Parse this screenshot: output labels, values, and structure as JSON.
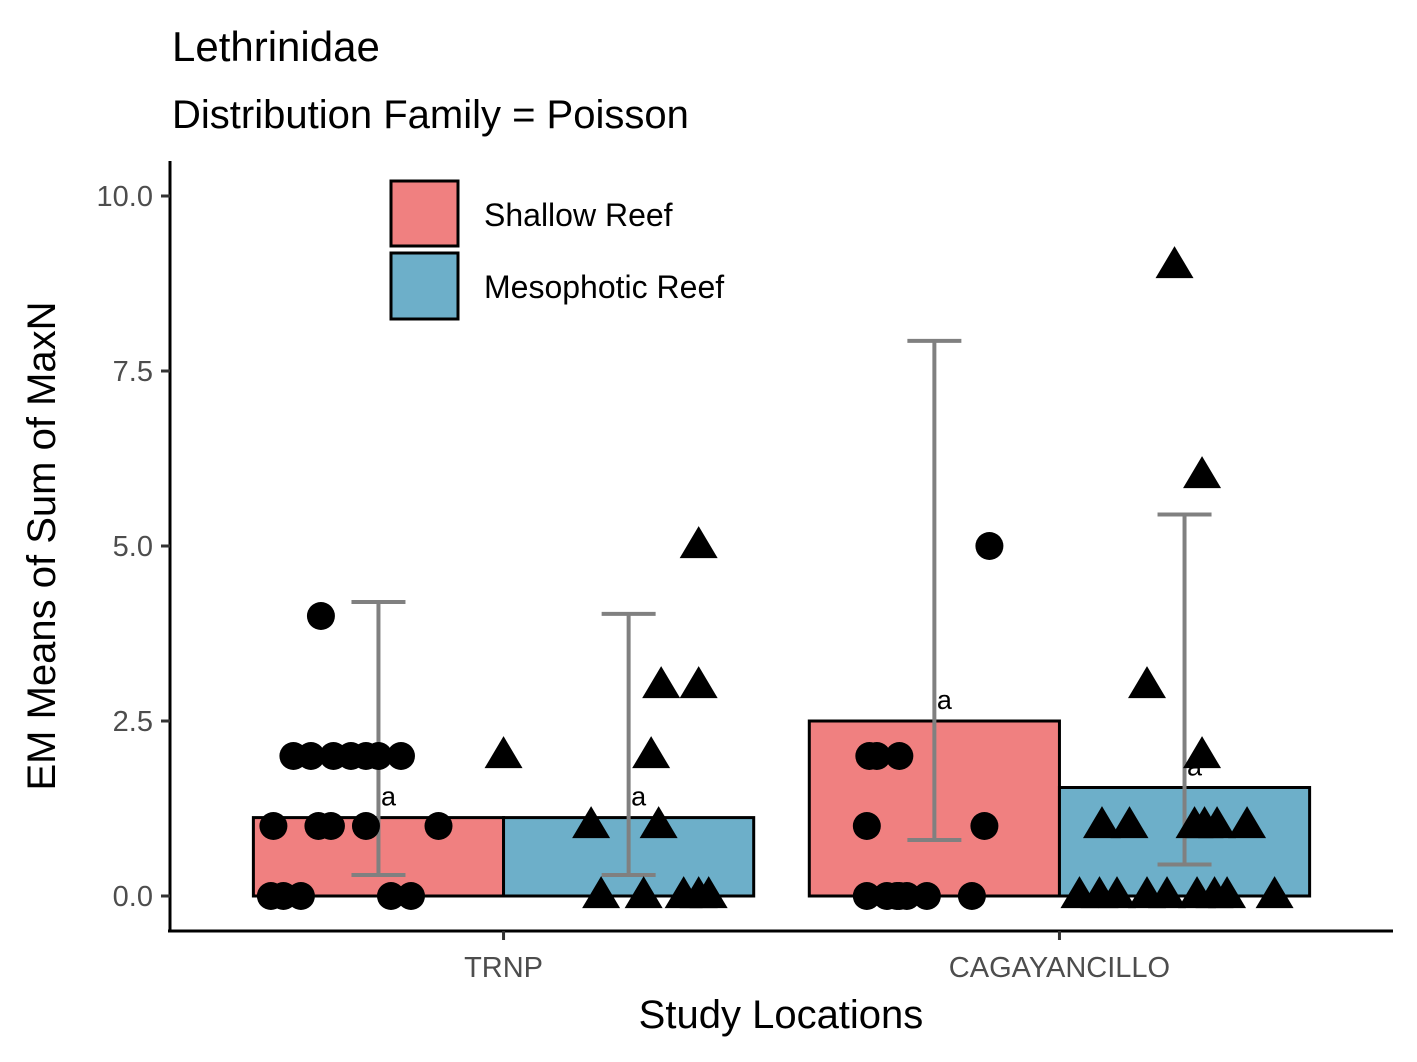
{
  "chart_data": {
    "type": "bar",
    "title": "Lethrinidae",
    "subtitle": "Distribution Family = Poisson",
    "xlabel": "Study Locations",
    "ylabel": "EM Means of Sum of MaxN",
    "ylim": [
      -0.5,
      10.5
    ],
    "yticks": [
      "0.0",
      "2.5",
      "5.0",
      "7.5",
      "10.0"
    ],
    "ytick_values": [
      0,
      2.5,
      5,
      7.5,
      10
    ],
    "categories": [
      "TRNP",
      "CAGAYANCILLO"
    ],
    "grid": false,
    "legend_position": "top-left (inside plot)",
    "colors": {
      "Shallow Reef": "#F08080",
      "Mesophotic Reef": "#6DAFC9",
      "error_bar": "#808080",
      "points": "#000000"
    },
    "series": [
      {
        "name": "Shallow Reef",
        "marker": "circle",
        "values": [
          1.12,
          2.5
        ],
        "ci_lower": [
          0.3,
          0.8
        ],
        "ci_upper": [
          4.2,
          7.93
        ],
        "sig_letters": [
          "a",
          "a"
        ],
        "points": [
          [
            [
              -0.43,
              0
            ],
            [
              -0.38,
              0
            ],
            [
              -0.31,
              0
            ],
            [
              0.05,
              0
            ],
            [
              0.13,
              0
            ],
            [
              -0.42,
              1
            ],
            [
              -0.24,
              1
            ],
            [
              -0.19,
              1
            ],
            [
              -0.05,
              1
            ],
            [
              0.24,
              1
            ],
            [
              -0.34,
              2
            ],
            [
              -0.27,
              2
            ],
            [
              -0.18,
              2
            ],
            [
              -0.11,
              2
            ],
            [
              -0.05,
              2
            ],
            [
              0.0,
              2
            ],
            [
              0.09,
              2
            ],
            [
              -0.23,
              4
            ]
          ],
          [
            [
              -0.27,
              0
            ],
            [
              -0.19,
              0
            ],
            [
              -0.15,
              0
            ],
            [
              -0.11,
              0
            ],
            [
              -0.03,
              0
            ],
            [
              0.15,
              0
            ],
            [
              -0.14,
              0
            ],
            [
              -0.27,
              1
            ],
            [
              0.2,
              1
            ],
            [
              -0.26,
              2
            ],
            [
              -0.23,
              2
            ],
            [
              -0.14,
              2
            ],
            [
              0.22,
              5
            ]
          ]
        ]
      },
      {
        "name": "Mesophotic Reef",
        "marker": "triangle",
        "values": [
          1.12,
          1.55
        ],
        "ci_lower": [
          0.3,
          0.45
        ],
        "ci_upper": [
          4.03,
          5.45
        ],
        "sig_letters": [
          "a",
          "a"
        ],
        "points": [
          [
            [
              -0.11,
              0
            ],
            [
              0.06,
              0
            ],
            [
              0.22,
              0
            ],
            [
              0.28,
              0
            ],
            [
              0.32,
              0
            ],
            [
              -0.15,
              1
            ],
            [
              0.12,
              1
            ],
            [
              -0.5,
              2
            ],
            [
              0.09,
              2
            ],
            [
              0.13,
              3
            ],
            [
              0.28,
              3
            ],
            [
              0.28,
              5
            ]
          ],
          [
            [
              -0.42,
              0
            ],
            [
              -0.34,
              0
            ],
            [
              -0.27,
              0
            ],
            [
              -0.15,
              0
            ],
            [
              -0.07,
              0
            ],
            [
              0.05,
              0
            ],
            [
              0.12,
              0
            ],
            [
              0.17,
              0
            ],
            [
              0.36,
              0
            ],
            [
              -0.33,
              1
            ],
            [
              -0.22,
              1
            ],
            [
              0.04,
              1
            ],
            [
              0.08,
              1
            ],
            [
              0.13,
              1
            ],
            [
              0.25,
              1
            ],
            [
              0.07,
              2
            ],
            [
              -0.15,
              3
            ],
            [
              0.07,
              6
            ],
            [
              -0.04,
              9
            ]
          ]
        ]
      }
    ]
  }
}
